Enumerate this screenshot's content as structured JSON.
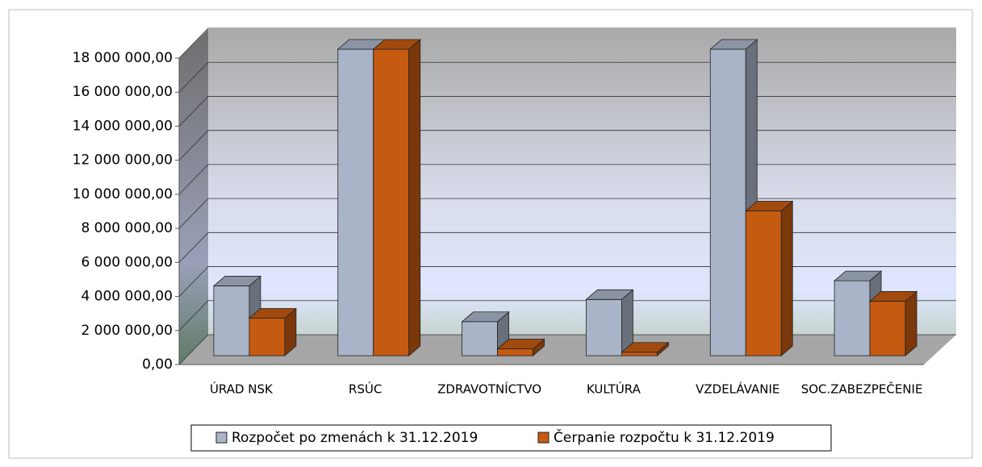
{
  "chart_data": {
    "type": "bar3d",
    "categories": [
      "ÚRAD NSK",
      "RSÚC",
      "ZDRAVOTNÍCTVO",
      "KULTÚRA",
      "VZDELÁVANIE",
      "SOC.ZABEZPEČENIE"
    ],
    "series": [
      {
        "name": "Rozpočet po zmenách k 31.12.2019",
        "color": "#a9b4c8",
        "values": [
          4100000,
          18000000,
          2000000,
          3300000,
          18000000,
          4400000
        ]
      },
      {
        "name": "Čerpanie rozpočtu k 31.12.2019",
        "color": "#c55a11",
        "values": [
          2200000,
          18000000,
          400000,
          200000,
          8500000,
          3200000
        ]
      }
    ],
    "ylim": [
      0,
      18000000
    ],
    "yticks": [
      {
        "value": 0,
        "label": "0,00"
      },
      {
        "value": 2000000,
        "label": "2 000 000,00"
      },
      {
        "value": 4000000,
        "label": "4 000 000,00"
      },
      {
        "value": 6000000,
        "label": "6 000 000,00"
      },
      {
        "value": 8000000,
        "label": "8 000 000,00"
      },
      {
        "value": 10000000,
        "label": "10 000 000,00"
      },
      {
        "value": 12000000,
        "label": "12 000 000,00"
      },
      {
        "value": 14000000,
        "label": "14 000 000,00"
      },
      {
        "value": 16000000,
        "label": "16 000 000,00"
      },
      {
        "value": 18000000,
        "label": "18 000 000,00"
      }
    ],
    "grid": true,
    "legend": "bottom"
  }
}
